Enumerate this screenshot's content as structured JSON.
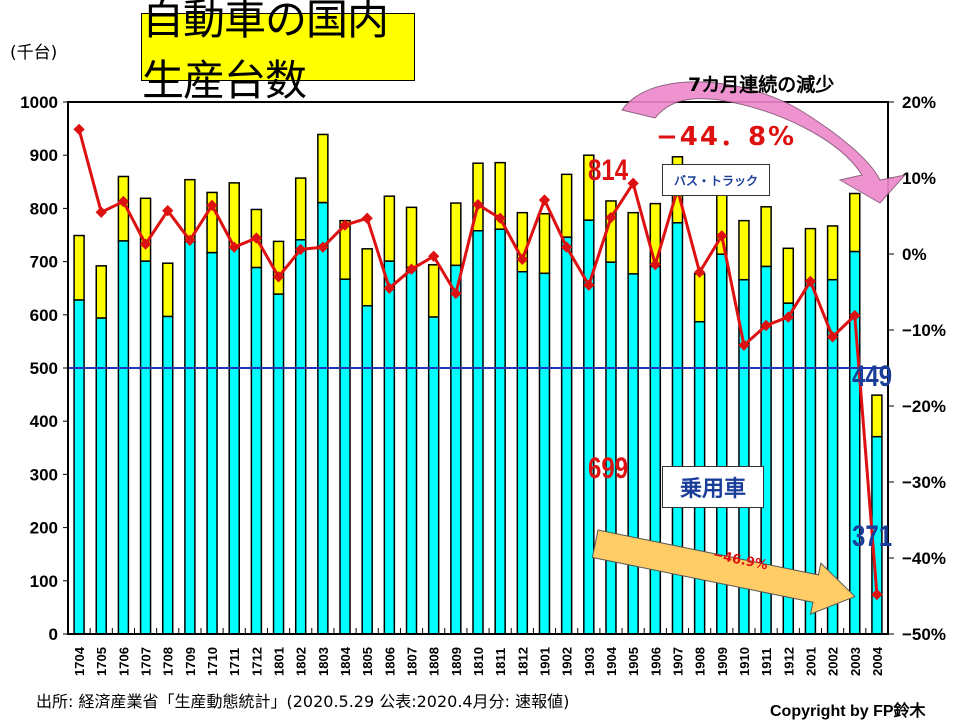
{
  "title": "自動車の国内生産台数",
  "annotations": {
    "streak": "7カ月連続の減少",
    "total_change": "−44．8%",
    "passenger_change": "−46.9%",
    "label_814": "814",
    "label_699": "699",
    "label_449": "449",
    "label_371": "371",
    "bus_truck": "バス・トラック",
    "passenger": "乗用車"
  },
  "footer": {
    "source": "出所: 経済産業省「生産動態統計」(2020.5.29 公表:2020.4月分: 速報値)",
    "copyright": "Copyright by FP鈴木"
  },
  "colors": {
    "passenger": "#00ffff",
    "bus_truck": "#ffff00",
    "yoy": "#dd1111",
    "reference": "#2233bb"
  },
  "chart_data": {
    "type": "bar",
    "stacked": true,
    "title": "自動車の国内生産台数",
    "ylabel": "(千台)",
    "ylim": [
      0,
      1000
    ],
    "yticks": [
      "0",
      "100",
      "200",
      "300",
      "400",
      "500",
      "600",
      "700",
      "800",
      "900",
      "1000"
    ],
    "y2lim": [
      -50,
      20
    ],
    "y2ticks": [
      "−50%",
      "−40%",
      "−30%",
      "−20%",
      "−10%",
      "0%",
      "10%",
      "20%"
    ],
    "reference_line": 500,
    "categories": [
      "1704",
      "1705",
      "1706",
      "1707",
      "1708",
      "1709",
      "1710",
      "1711",
      "1712",
      "1801",
      "1802",
      "1803",
      "1804",
      "1805",
      "1806",
      "1807",
      "1808",
      "1809",
      "1810",
      "1811",
      "1812",
      "1901",
      "1902",
      "1903",
      "1904",
      "1905",
      "1906",
      "1907",
      "1908",
      "1909",
      "1910",
      "1911",
      "1912",
      "2001",
      "2002",
      "2003",
      "2004"
    ],
    "series": [
      {
        "name": "乗用車",
        "type": "bar",
        "values": [
          628,
          594,
          739,
          701,
          597,
          738,
          717,
          728,
          689,
          639,
          741,
          811,
          667,
          617,
          701,
          689,
          596,
          693,
          758,
          761,
          681,
          678,
          746,
          778,
          699,
          677,
          691,
          773,
          587,
          714,
          666,
          691,
          622,
          665,
          666,
          719,
          371
        ]
      },
      {
        "name": "バス・トラック",
        "type": "bar",
        "values": [
          121,
          98,
          121,
          118,
          100,
          116,
          113,
          120,
          109,
          99,
          116,
          128,
          110,
          107,
          122,
          113,
          98,
          117,
          127,
          125,
          111,
          112,
          118,
          122,
          115,
          115,
          118,
          124,
          90,
          131,
          111,
          112,
          103,
          97,
          101,
          109,
          78
        ]
      },
      {
        "type": "line",
        "axis": "right",
        "values": [
          16.4,
          5.5,
          6.9,
          1.3,
          5.7,
          1.8,
          6.4,
          0.9,
          2.1,
          -3.0,
          0.6,
          0.9,
          3.8,
          4.7,
          -4.5,
          -2.0,
          -0.3,
          -5.2,
          6.5,
          4.7,
          -0.7,
          7.1,
          0.9,
          -4.1,
          4.8,
          9.3,
          -1.4,
          8.5,
          -2.4,
          2.4,
          -12.0,
          -9.4,
          -8.3,
          -3.6,
          -10.9,
          -8.1,
          -44.8
        ]
      }
    ]
  }
}
